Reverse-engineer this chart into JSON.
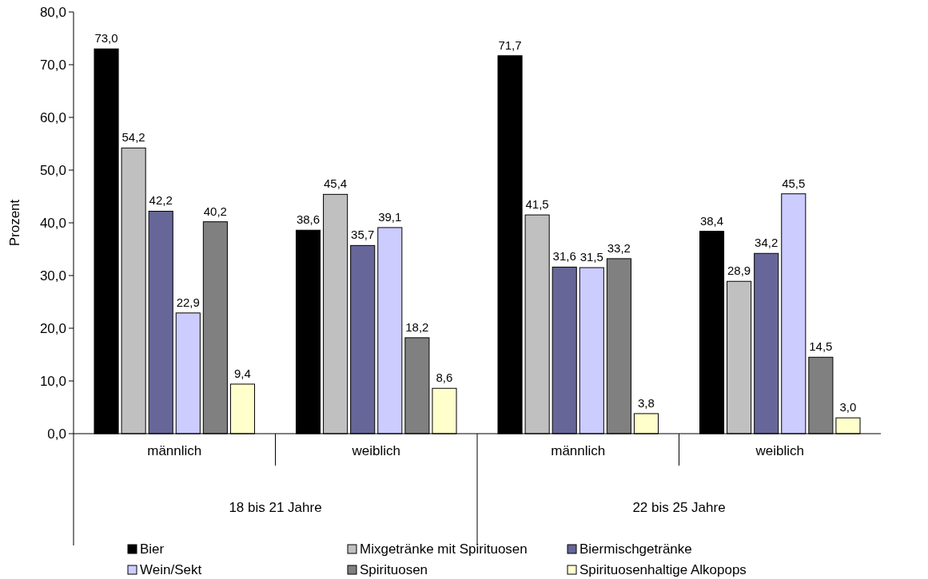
{
  "chart_data": {
    "type": "bar",
    "ylabel": "Prozent",
    "categories": [
      "männlich",
      "weiblich",
      "männlich",
      "weiblich"
    ],
    "annotations": [
      "18 bis 21 Jahre",
      "22 bis 25 Jahre"
    ],
    "ylim": [
      0,
      80
    ],
    "yticks": [
      {
        "value": 0,
        "label": "0,0"
      },
      {
        "value": 10,
        "label": "10,0"
      },
      {
        "value": 20,
        "label": "20,0"
      },
      {
        "value": 30,
        "label": "30,0"
      },
      {
        "value": 40,
        "label": "40,0"
      },
      {
        "value": 50,
        "label": "50,0"
      },
      {
        "value": 60,
        "label": "60,0"
      },
      {
        "value": 70,
        "label": "70,0"
      },
      {
        "value": 80,
        "label": "80,0"
      }
    ],
    "legend": "bottom",
    "series": [
      {
        "name": "Bier",
        "color": "#000000",
        "values": [
          73.0,
          38.6,
          71.7,
          38.4
        ],
        "value_labels": [
          "73,0",
          "38,6",
          "71,7",
          "38,4"
        ]
      },
      {
        "name": "Mixgetränke mit Spirituosen",
        "color": "#c0c0c0",
        "values": [
          54.2,
          45.4,
          41.5,
          28.9
        ],
        "value_labels": [
          "54,2",
          "45,4",
          "41,5",
          "28,9"
        ]
      },
      {
        "name": "Biermischgetränke",
        "color": "#666699",
        "values": [
          42.2,
          35.7,
          31.6,
          34.2
        ],
        "value_labels": [
          "42,2",
          "35,7",
          "31,6",
          "34,2"
        ]
      },
      {
        "name": "Wein/Sekt",
        "color": "#ccccff",
        "values": [
          22.9,
          39.1,
          31.5,
          45.5
        ],
        "value_labels": [
          "22,9",
          "39,1",
          "31,5",
          "45,5"
        ]
      },
      {
        "name": "Spirituosen",
        "color": "#808080",
        "values": [
          40.2,
          18.2,
          33.2,
          14.5
        ],
        "value_labels": [
          "40,2",
          "18,2",
          "33,2",
          "14,5"
        ]
      },
      {
        "name": "Spirituosenhaltige Alkopops",
        "color": "#ffffcc",
        "values": [
          9.4,
          8.6,
          3.8,
          3.0
        ],
        "value_labels": [
          "9,4",
          "8,6",
          "3,8",
          "3,0"
        ]
      }
    ]
  }
}
